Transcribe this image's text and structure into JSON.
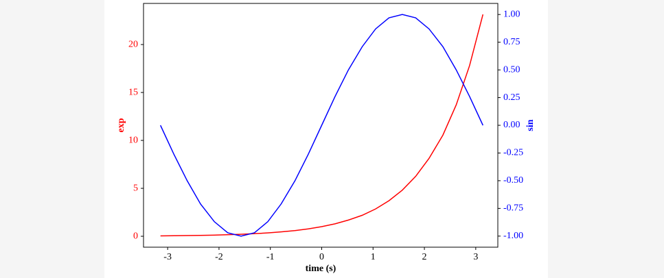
{
  "chart_data": {
    "type": "line",
    "xlabel": "time (s)",
    "ylabel": "exp",
    "y2label": "sin",
    "x": [
      -3.14,
      -2.88,
      -2.62,
      -2.36,
      -2.09,
      -1.83,
      -1.57,
      -1.31,
      -1.05,
      -0.79,
      -0.52,
      -0.26,
      0,
      0.26,
      0.52,
      0.79,
      1.05,
      1.31,
      1.57,
      1.83,
      2.09,
      2.36,
      2.62,
      2.88,
      3.14
    ],
    "series": [
      {
        "name": "exp",
        "color": "#ff0000",
        "values": [
          0.04,
          0.06,
          0.07,
          0.09,
          0.12,
          0.16,
          0.21,
          0.27,
          0.35,
          0.46,
          0.59,
          0.77,
          1,
          1.3,
          1.69,
          2.19,
          2.85,
          3.71,
          4.81,
          6.25,
          8.12,
          10.55,
          13.71,
          17.81,
          23.14
        ]
      },
      {
        "name": "sin",
        "color": "#0000ff",
        "axis": "y2",
        "values": [
          0,
          -0.26,
          -0.5,
          -0.71,
          -0.87,
          -0.97,
          -1,
          -0.97,
          -0.87,
          -0.71,
          -0.5,
          -0.26,
          0,
          0.26,
          0.5,
          0.71,
          0.87,
          0.97,
          1,
          0.97,
          0.87,
          0.71,
          0.5,
          0.26,
          0
        ]
      }
    ],
    "xlim": [
      -3.47,
      3.43
    ],
    "xticks": [
      -3,
      -2,
      -1,
      0,
      1,
      2,
      3
    ],
    "ylim": [
      -1.14,
      24.29
    ],
    "yticks": [
      0,
      5,
      10,
      15,
      20
    ],
    "y2lim": [
      -1.1,
      1.1
    ],
    "y2ticks": [
      {
        "value": -1,
        "label": "-1.00"
      },
      {
        "value": -0.75,
        "label": "-0.75"
      },
      {
        "value": -0.5,
        "label": "-0.50"
      },
      {
        "value": -0.25,
        "label": "-0.25"
      },
      {
        "value": 0,
        "label": "0.00"
      },
      {
        "value": 0.25,
        "label": "0.25"
      },
      {
        "value": 0.5,
        "label": "0.50"
      },
      {
        "value": 0.75,
        "label": "0.75"
      },
      {
        "value": 1,
        "label": "1.00"
      }
    ]
  }
}
